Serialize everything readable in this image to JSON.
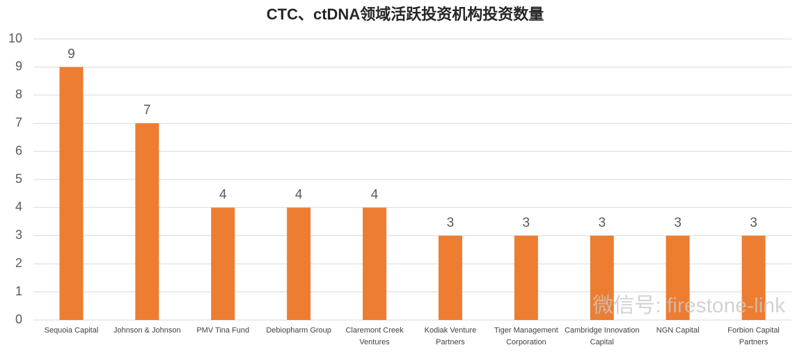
{
  "chart_data": {
    "type": "bar",
    "title": "CTC、ctDNA领域活跃投资机构投资数量",
    "categories": [
      "Sequoia Capital",
      "Johnson & Johnson",
      "PMV Tina Fund",
      "Debiopharm Group",
      "Claremont Creek Ventures",
      "Kodiak Venture Partners",
      "Tiger Management Corporation",
      "Cambridge Innovation Capital",
      "NGN Capital",
      "Forbion Capital Partners"
    ],
    "values": [
      9,
      7,
      4,
      4,
      4,
      3,
      3,
      3,
      3,
      3
    ],
    "color": "#ed7d31",
    "ylim": [
      0,
      10
    ],
    "yticks": [
      0,
      1,
      2,
      3,
      4,
      5,
      6,
      7,
      8,
      9,
      10
    ],
    "grid": true,
    "watermark": "微信号: firestone-link"
  }
}
